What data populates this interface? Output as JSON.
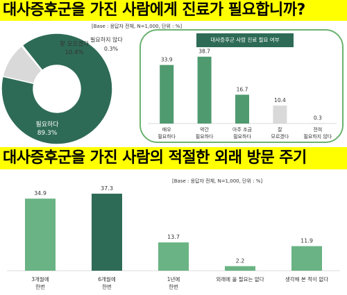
{
  "titles": {
    "top": "대사증후군을 가진 사람에게 진료가 필요합니까?",
    "bottom": "대사증후군을 가진 사람의 적절한 외래 방문 주기"
  },
  "notes": {
    "base_top": "[Base : 응답자 전체, N=1,000, 단위 : %]",
    "base_bottom": "[Base : 응답자 전체, N=1,000, 단위 : %]"
  },
  "colors": {
    "title_bg": "#ffff00",
    "dark_green": "#2e6b57",
    "mid_green": "#4f9a6f",
    "light_green": "#6ab384",
    "gray": "#d9d9d9",
    "panel_border": "#6ab26f"
  },
  "panel": {
    "header": "대사증후군 사람 진료 필요 여부"
  },
  "chart_data": [
    {
      "type": "pie",
      "slices": [
        {
          "label": "필요하다",
          "value": 89.3,
          "color": "#2e6b57"
        },
        {
          "label": "잘 모르겠다",
          "value": 10.4,
          "color": "#d9d9d9"
        },
        {
          "label": "필요하지 않다",
          "value": 0.3,
          "color": "#bfbfbf"
        }
      ]
    },
    {
      "type": "bar",
      "title": "대사증후군 사람 진료 필요 여부",
      "categories": [
        [
          "매우",
          "필요하다"
        ],
        [
          "약간",
          "필요하다"
        ],
        [
          "아주 조금",
          "필요하다"
        ],
        [
          "잘",
          "모르겠다"
        ],
        [
          "전혀",
          "필요하지 않다"
        ]
      ],
      "values": [
        33.9,
        38.7,
        16.7,
        10.4,
        0.3
      ],
      "colors": [
        "#4f9a6f",
        "#4f9a6f",
        "#4f9a6f",
        "#d9d9d9",
        "#d9d9d9"
      ],
      "ylim": [
        0,
        45
      ]
    },
    {
      "type": "bar",
      "categories": [
        [
          "3개월에",
          "한번"
        ],
        [
          "6개월에",
          "한번"
        ],
        [
          "1년에",
          "한번"
        ],
        [
          "외래에 올 필요는 없다"
        ],
        [
          "생각해 본 적이 없다"
        ]
      ],
      "values": [
        34.9,
        37.3,
        13.7,
        2.2,
        11.9
      ],
      "colors": [
        "#6ab384",
        "#2e6b57",
        "#6ab384",
        "#6ab384",
        "#6ab384"
      ],
      "ylim": [
        0,
        40
      ]
    }
  ]
}
